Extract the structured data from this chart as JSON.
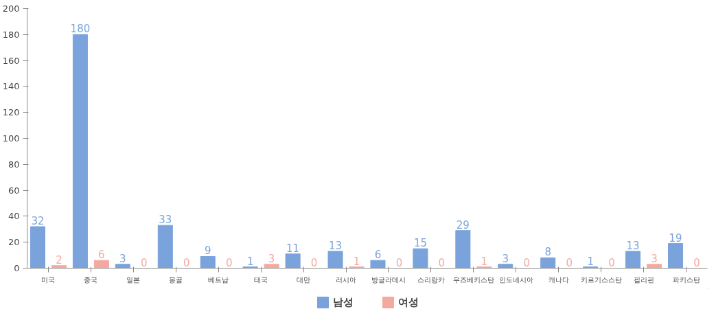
{
  "chart_data": {
    "type": "bar",
    "categories": [
      "미국",
      "중국",
      "일본",
      "몽골",
      "베트남",
      "태국",
      "대만",
      "러시아",
      "방글라데시",
      "스리랑카",
      "우즈베키스탄",
      "인도네시아",
      "캐나다",
      "키르기스스탄",
      "필리핀",
      "파키스탄"
    ],
    "series": [
      {
        "name": "남성",
        "color": "#7aa3dc",
        "values": [
          32,
          180,
          3,
          33,
          9,
          1,
          11,
          13,
          6,
          15,
          29,
          3,
          8,
          1,
          13,
          19
        ]
      },
      {
        "name": "여성",
        "color": "#f4a9a0",
        "values": [
          2,
          6,
          0,
          0,
          0,
          3,
          0,
          1,
          0,
          0,
          1,
          0,
          0,
          0,
          3,
          0
        ]
      }
    ],
    "ylim": [
      0,
      200
    ],
    "yticks": [
      0,
      20,
      40,
      60,
      80,
      100,
      120,
      140,
      160,
      180,
      200
    ],
    "grid": false,
    "legend": "bottom",
    "data_labels": true
  }
}
